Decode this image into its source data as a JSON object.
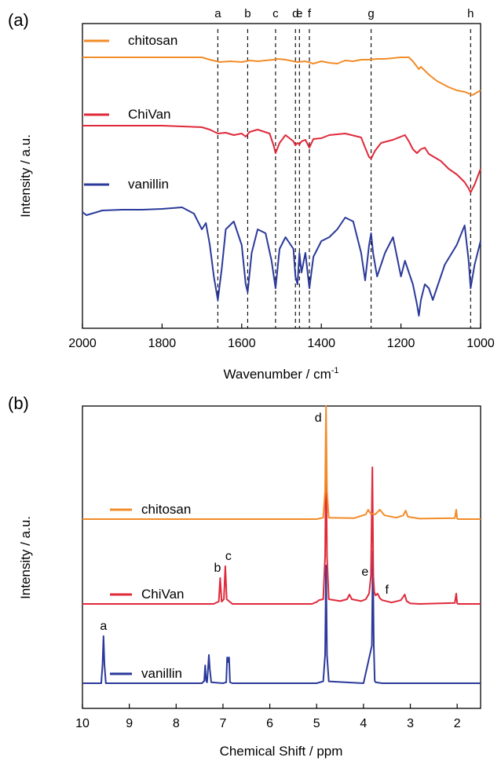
{
  "chart_data": [
    {
      "panel_label": "(a)",
      "type": "line",
      "xlabel": "Wavenumber / cm",
      "xlabel_superscript": "-1",
      "ylabel": "Intensity / a.u.",
      "xlim": [
        2000,
        1000
      ],
      "x_reversed": true,
      "xticks": [
        2000,
        1800,
        1600,
        1400,
        1200,
        1000
      ],
      "grid": false,
      "legend": "inline labels at upper-left of each trace",
      "y_units": "arbitrary (stacked traces, offset)",
      "markers": [
        {
          "label": "a",
          "x": 1660
        },
        {
          "label": "b",
          "x": 1585
        },
        {
          "label": "c",
          "x": 1515
        },
        {
          "label": "d",
          "x": 1465
        },
        {
          "label": "e",
          "x": 1455
        },
        {
          "label": "f",
          "x": 1430
        },
        {
          "label": "g",
          "x": 1275
        },
        {
          "label": "h",
          "x": 1025
        }
      ],
      "series": [
        {
          "name": "chitosan",
          "color": "#F28C28",
          "x": [
            2000,
            1900,
            1800,
            1700,
            1680,
            1655,
            1630,
            1600,
            1580,
            1560,
            1540,
            1520,
            1510,
            1490,
            1460,
            1440,
            1420,
            1400,
            1380,
            1360,
            1340,
            1320,
            1300,
            1280,
            1260,
            1240,
            1200,
            1180,
            1170,
            1155,
            1150,
            1130,
            1110,
            1080,
            1060,
            1040,
            1030,
            1020,
            1010,
            1000
          ],
          "y": [
            0.0,
            0.0,
            0.0,
            0.0,
            -0.03,
            -0.06,
            -0.05,
            -0.06,
            -0.04,
            -0.05,
            -0.04,
            -0.03,
            -0.02,
            -0.03,
            -0.06,
            -0.05,
            -0.08,
            -0.05,
            -0.07,
            -0.08,
            -0.04,
            -0.05,
            -0.03,
            -0.03,
            -0.02,
            -0.02,
            0.0,
            0.0,
            -0.05,
            -0.15,
            -0.12,
            -0.22,
            -0.3,
            -0.38,
            -0.42,
            -0.44,
            -0.46,
            -0.48,
            -0.45,
            -0.42
          ]
        },
        {
          "name": "ChiVan",
          "color": "#E0293A",
          "x": [
            2000,
            1900,
            1800,
            1700,
            1680,
            1660,
            1640,
            1620,
            1600,
            1590,
            1580,
            1560,
            1530,
            1520,
            1515,
            1505,
            1490,
            1470,
            1465,
            1460,
            1455,
            1450,
            1440,
            1430,
            1420,
            1400,
            1380,
            1340,
            1300,
            1290,
            1280,
            1275,
            1265,
            1250,
            1220,
            1200,
            1190,
            1180,
            1170,
            1160,
            1150,
            1140,
            1130,
            1100,
            1080,
            1060,
            1040,
            1030,
            1025,
            1015,
            1000
          ],
          "y": [
            0.0,
            0.0,
            0.0,
            -0.02,
            -0.05,
            -0.1,
            -0.09,
            -0.12,
            -0.1,
            -0.14,
            -0.08,
            -0.05,
            -0.1,
            -0.25,
            -0.35,
            -0.22,
            -0.12,
            -0.2,
            -0.25,
            -0.22,
            -0.24,
            -0.2,
            -0.18,
            -0.28,
            -0.17,
            -0.16,
            -0.12,
            -0.1,
            -0.15,
            -0.28,
            -0.4,
            -0.42,
            -0.32,
            -0.22,
            -0.18,
            -0.14,
            -0.12,
            -0.2,
            -0.3,
            -0.35,
            -0.3,
            -0.28,
            -0.36,
            -0.45,
            -0.55,
            -0.62,
            -0.72,
            -0.8,
            -0.85,
            -0.75,
            -0.55
          ]
        },
        {
          "name": "vanillin",
          "color": "#2B3A9A",
          "x": [
            2000,
            1990,
            1950,
            1900,
            1850,
            1800,
            1750,
            1720,
            1700,
            1690,
            1680,
            1670,
            1660,
            1650,
            1640,
            1620,
            1600,
            1590,
            1585,
            1575,
            1560,
            1540,
            1525,
            1515,
            1505,
            1490,
            1470,
            1465,
            1460,
            1455,
            1450,
            1440,
            1430,
            1420,
            1400,
            1380,
            1360,
            1340,
            1320,
            1300,
            1290,
            1280,
            1275,
            1270,
            1260,
            1240,
            1220,
            1200,
            1190,
            1180,
            1170,
            1160,
            1155,
            1150,
            1140,
            1130,
            1120,
            1110,
            1090,
            1060,
            1040,
            1030,
            1025,
            1015,
            1000
          ],
          "y": [
            -0.08,
            -0.12,
            -0.06,
            -0.05,
            -0.05,
            -0.04,
            -0.02,
            -0.1,
            -0.3,
            -0.22,
            -0.5,
            -0.9,
            -1.2,
            -0.8,
            -0.3,
            -0.2,
            -0.5,
            -1.0,
            -1.1,
            -0.6,
            -0.3,
            -0.35,
            -0.7,
            -1.05,
            -0.55,
            -0.4,
            -0.55,
            -0.9,
            -1.0,
            -0.6,
            -0.85,
            -0.6,
            -1.05,
            -0.65,
            -0.45,
            -0.4,
            -0.3,
            -0.15,
            -0.2,
            -0.6,
            -0.95,
            -0.5,
            -0.35,
            -0.6,
            -0.9,
            -0.6,
            -0.4,
            -0.9,
            -0.7,
            -0.85,
            -1.0,
            -1.25,
            -1.4,
            -1.2,
            -1.0,
            -1.05,
            -1.2,
            -1.05,
            -0.75,
            -0.5,
            -0.25,
            -0.7,
            -1.05,
            -0.75,
            -0.45
          ]
        }
      ]
    },
    {
      "panel_label": "(b)",
      "type": "line",
      "xlabel": "Chemical Shift / ppm",
      "ylabel": "Intensity / a.u.",
      "xlim": [
        10,
        1.5
      ],
      "x_reversed": true,
      "xticks": [
        10,
        9,
        8,
        7,
        6,
        5,
        4,
        3,
        2
      ],
      "grid": false,
      "legend": "inline labels at left of each trace",
      "y_units": "arbitrary (stacked traces, offset)",
      "peak_labels": [
        {
          "label": "a",
          "x": 9.55,
          "series": "vanillin"
        },
        {
          "label": "b",
          "x": 7.05,
          "series": "ChiVan"
        },
        {
          "label": "c",
          "x": 6.95,
          "series": "ChiVan"
        },
        {
          "label": "d",
          "x": 4.8,
          "series": "chitosan"
        },
        {
          "label": "e",
          "x": 3.8,
          "series": "ChiVan"
        },
        {
          "label": "f",
          "x": 3.7,
          "series": "ChiVan"
        }
      ],
      "series": [
        {
          "name": "chitosan",
          "color": "#F28C28",
          "x": [
            10,
            5.0,
            4.86,
            4.82,
            4.8,
            4.78,
            4.74,
            4.2,
            3.95,
            3.9,
            3.85,
            3.75,
            3.65,
            3.55,
            3.3,
            3.15,
            3.1,
            3.05,
            2.8,
            2.05,
            2.02,
            2.0,
            1.98,
            1.5
          ],
          "y": [
            0,
            0,
            0.03,
            0.6,
            2.5,
            0.6,
            0.03,
            0.02,
            0.1,
            0.2,
            0.12,
            0.1,
            0.2,
            0.08,
            0.03,
            0.08,
            0.18,
            0.05,
            0.01,
            0.02,
            0.2,
            0.01,
            0.0,
            0
          ]
        },
        {
          "name": "ChiVan",
          "color": "#E0293A",
          "x": [
            10,
            7.2,
            7.09,
            7.06,
            7.03,
            6.98,
            6.95,
            6.92,
            6.8,
            5.1,
            5.0,
            4.95,
            4.86,
            4.82,
            4.8,
            4.78,
            4.74,
            4.5,
            4.35,
            4.3,
            4.25,
            4.05,
            3.95,
            3.88,
            3.84,
            3.81,
            3.79,
            3.77,
            3.74,
            3.7,
            3.65,
            3.6,
            3.4,
            3.2,
            3.12,
            3.08,
            3.0,
            2.8,
            2.05,
            2.02,
            2.0,
            1.98,
            1.5
          ],
          "y": [
            0,
            0,
            0.05,
            0.55,
            0.05,
            0.1,
            0.8,
            0.1,
            0,
            0,
            0.04,
            0.08,
            0.1,
            1.0,
            3.2,
            1.0,
            0.1,
            0.06,
            0.1,
            0.2,
            0.1,
            0.06,
            0.1,
            0.22,
            0.6,
            2.9,
            0.6,
            0.25,
            0.18,
            0.22,
            0.12,
            0.08,
            0.03,
            0.08,
            0.2,
            0.06,
            0.01,
            0,
            0.02,
            0.22,
            0.01,
            0,
            0
          ]
        },
        {
          "name": "vanillin",
          "color": "#2B3A9A",
          "x": [
            10,
            9.6,
            9.57,
            9.55,
            9.53,
            9.5,
            7.45,
            7.4,
            7.38,
            7.36,
            7.34,
            7.32,
            7.3,
            7.28,
            7.25,
            7.0,
            6.93,
            6.91,
            6.89,
            6.87,
            6.85,
            6.8,
            5.0,
            4.86,
            4.82,
            4.8,
            4.78,
            4.74,
            4.0,
            3.82,
            3.8,
            3.78,
            3.76,
            3.74,
            3.6,
            2.0,
            1.5
          ],
          "y": [
            0,
            0,
            0.4,
            1.0,
            0.4,
            0,
            0,
            0.05,
            0.38,
            0.05,
            0.02,
            0.3,
            0.6,
            0.3,
            0.02,
            0,
            0.02,
            0.55,
            0.45,
            0.55,
            0.02,
            0,
            0,
            0.04,
            0.6,
            2.5,
            0.6,
            0.04,
            0,
            0.8,
            2.8,
            0.8,
            0.05,
            0.02,
            0,
            0,
            0
          ]
        }
      ]
    }
  ]
}
